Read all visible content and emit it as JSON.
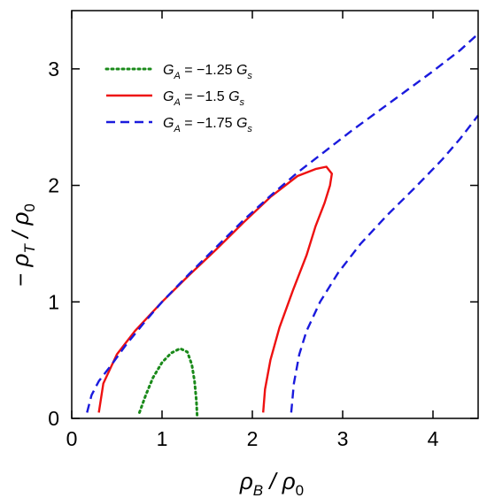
{
  "chart_data": {
    "type": "line",
    "xlabel": "ρB / ρ0",
    "ylabel": "− ρT / ρ0",
    "xlim": [
      0,
      4.5
    ],
    "ylim": [
      0,
      3.5
    ],
    "x_ticks": [
      0,
      1,
      2,
      3,
      4
    ],
    "y_ticks": [
      0,
      1,
      2,
      3
    ],
    "grid": false,
    "legend_position": "top-left",
    "series": [
      {
        "name": "GA = −1.25 Gs",
        "color": "#1a8a1a",
        "dash": "dotted",
        "x": [
          0.75,
          0.82,
          0.9,
          1.0,
          1.1,
          1.2,
          1.28,
          1.33,
          1.36,
          1.38,
          1.39
        ],
        "y": [
          0.05,
          0.2,
          0.35,
          0.48,
          0.56,
          0.6,
          0.57,
          0.46,
          0.32,
          0.15,
          0.0
        ]
      },
      {
        "name": "GA = −1.5 Gs",
        "color": "#ee1111",
        "dash": "solid",
        "x": [
          0.3,
          0.35,
          0.5,
          0.7,
          1.0,
          1.3,
          1.6,
          1.9,
          2.2,
          2.5,
          2.7,
          2.82,
          2.88,
          2.86,
          2.8,
          2.7,
          2.6,
          2.45,
          2.3,
          2.2,
          2.14,
          2.12
        ],
        "y": [
          0.05,
          0.3,
          0.55,
          0.75,
          1.0,
          1.23,
          1.45,
          1.68,
          1.9,
          2.08,
          2.14,
          2.16,
          2.1,
          2.0,
          1.85,
          1.65,
          1.4,
          1.1,
          0.78,
          0.5,
          0.25,
          0.05
        ]
      },
      {
        "name": "GA = −1.75 Gs",
        "color": "#1a1add",
        "dash": "dashed",
        "segments": [
          {
            "x": [
              0.17,
              0.22,
              0.3,
              0.45,
              0.6,
              0.8,
              1.0,
              1.3,
              1.6,
              1.9,
              2.2,
              2.5,
              2.8,
              3.1,
              3.4,
              3.7,
              4.0,
              4.3,
              4.5
            ],
            "y": [
              0.05,
              0.2,
              0.32,
              0.47,
              0.63,
              0.82,
              1.0,
              1.24,
              1.47,
              1.7,
              1.91,
              2.11,
              2.29,
              2.47,
              2.64,
              2.81,
              2.98,
              3.16,
              3.3
            ]
          },
          {
            "x": [
              2.43,
              2.46,
              2.52,
              2.6,
              2.75,
              2.95,
              3.2,
              3.5,
              3.8,
              4.1,
              4.3,
              4.5
            ],
            "y": [
              0.05,
              0.3,
              0.55,
              0.75,
              1.0,
              1.25,
              1.5,
              1.75,
              1.98,
              2.22,
              2.4,
              2.6
            ]
          }
        ]
      }
    ]
  }
}
